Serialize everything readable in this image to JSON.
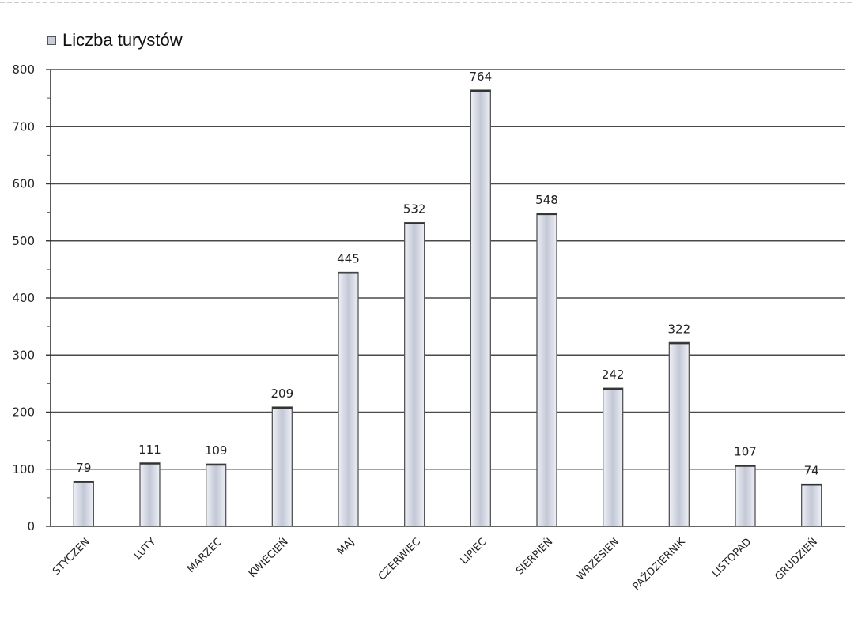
{
  "colors": {
    "bar_fill_light": "#eef0f6",
    "bar_fill_mid": "#c3c8d6",
    "bar_stroke": "#555555",
    "grid": "#4a4a4a",
    "text": "#222222"
  },
  "chart_data": {
    "type": "bar",
    "legend": {
      "label": "Liczba turystów",
      "position": "top-left"
    },
    "categories": [
      "STYCZEŃ",
      "LUTY",
      "MARZEC",
      "KWIECIEŃ",
      "MAJ",
      "CZERWIEC",
      "LIPIEC",
      "SIERPIEŃ",
      "WRZESIEŃ",
      "PAŹDZIERNIK",
      "LISTOPAD",
      "GRUDZIEŃ"
    ],
    "series": [
      {
        "name": "Liczba turystów",
        "values": [
          79,
          111,
          109,
          209,
          445,
          532,
          764,
          548,
          242,
          322,
          107,
          74
        ]
      }
    ],
    "ylim": [
      0,
      800
    ],
    "yticks": [
      0,
      100,
      200,
      300,
      400,
      500,
      600,
      700,
      800
    ],
    "grid": true,
    "data_labels": true
  }
}
